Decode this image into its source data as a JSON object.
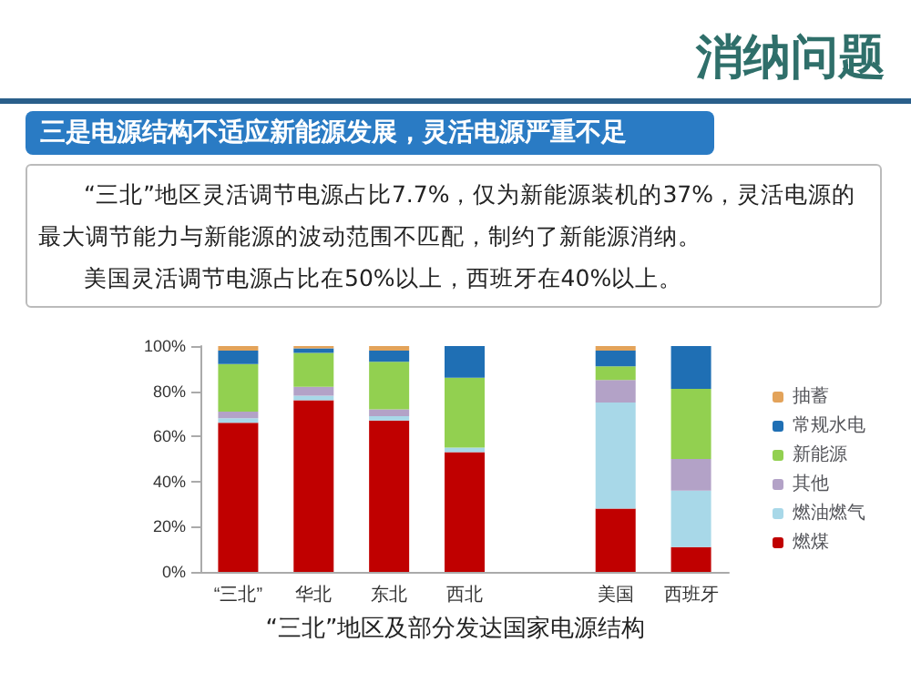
{
  "chart_data": {
    "type": "bar",
    "stacked": true,
    "title": "消纳问题",
    "subtitle": "三是电源结构不适应新能源发展，灵活电源严重不足",
    "annotations": [
      "“三北”地区灵活调节电源占比7.7%，仅为新能源装机的37%，灵活电源的最大调节能力与新能源的波动范围不匹配，制约了新能源消纳。",
      "美国灵活调节电源占比在50%以上，西班牙在40%以上。",
      "“三北”地区及部分发达国家电源结构"
    ],
    "categories": [
      "“三北”",
      "华北",
      "东北",
      "西北",
      null,
      "美国",
      "西班牙"
    ],
    "series": [
      {
        "name": "燃煤",
        "color": "#c00000",
        "values": [
          66,
          76,
          67,
          53,
          null,
          28,
          11
        ]
      },
      {
        "name": "燃油燃气",
        "color": "#a8d8e8",
        "values": [
          2,
          2,
          2,
          2,
          null,
          47,
          25
        ]
      },
      {
        "name": "其他",
        "color": "#b3a2c7",
        "values": [
          3,
          4,
          3,
          0,
          null,
          10,
          14
        ]
      },
      {
        "name": "新能源",
        "color": "#92d050",
        "values": [
          21,
          15,
          21,
          31,
          null,
          6,
          31
        ]
      },
      {
        "name": "常规水电",
        "color": "#1f6fb4",
        "values": [
          6,
          2,
          5,
          14,
          null,
          7,
          19
        ]
      },
      {
        "name": "抽蓄",
        "color": "#e3a35a",
        "values": [
          2,
          1,
          2,
          0,
          null,
          2,
          0
        ]
      }
    ],
    "ylim": [
      0,
      100
    ],
    "yticks": [
      {
        "value": 0,
        "label": "0%"
      },
      {
        "value": 20,
        "label": "20%"
      },
      {
        "value": 40,
        "label": "40%"
      },
      {
        "value": 60,
        "label": "60%"
      },
      {
        "value": 80,
        "label": "80%"
      },
      {
        "value": 100,
        "label": "100%"
      }
    ],
    "grid": false,
    "legend": "right"
  }
}
